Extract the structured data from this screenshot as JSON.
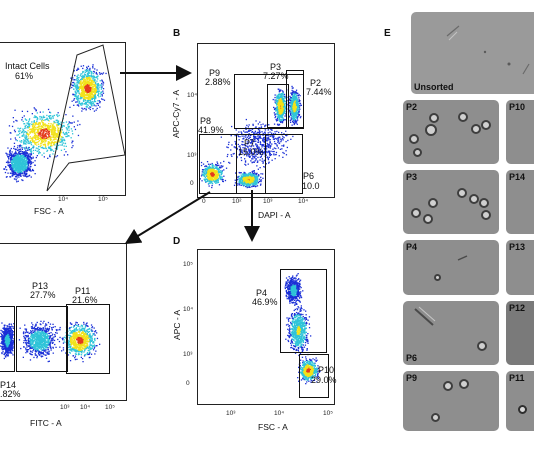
{
  "panels": {
    "a": {
      "xaxis": "FSC - A",
      "ticks_x": [
        "10⁴",
        "10⁵"
      ],
      "gate": {
        "name": "Intact Cells",
        "pct": "61%"
      }
    },
    "b": {
      "letter": "B",
      "xaxis": "DAPI - A",
      "yaxis": "APC-Cy7 - A",
      "ticks_x": [
        "0",
        "10²",
        "10³",
        "10⁴"
      ],
      "ticks_y": [
        "10⁴",
        "10³",
        "0"
      ],
      "gates": [
        {
          "name": "P9",
          "pct": "2.88%"
        },
        {
          "name": "P3",
          "pct": "7.27%"
        },
        {
          "name": "P2",
          "pct": "7.44%"
        },
        {
          "name": "P8",
          "pct": "41.9%"
        },
        {
          "name": "P7",
          "pct": "15.0%"
        },
        {
          "name": "P6",
          "pct": "10.0"
        }
      ]
    },
    "c": {
      "xaxis": "FITC - A",
      "ticks_x": [
        "10³",
        "10⁴",
        "10⁵"
      ],
      "gates": [
        {
          "name": "P13",
          "pct": "27.7%"
        },
        {
          "name": "P11",
          "pct": "21.6%"
        },
        {
          "name": "P14",
          "pct": ".82%"
        }
      ]
    },
    "d": {
      "letter": "D",
      "xaxis": "FSC - A",
      "yaxis": "APC - A",
      "ticks_x": [
        "10³",
        "10⁴",
        "10⁵"
      ],
      "ticks_y": [
        "10⁵",
        "10⁴",
        "10³",
        "0"
      ],
      "gates": [
        {
          "name": "P4",
          "pct": "46.9%"
        },
        {
          "name": "P10",
          "pct": "29.0%"
        }
      ]
    },
    "e": {
      "letter": "E",
      "tiles": {
        "unsorted": "Unsorted",
        "p2": "P2",
        "p10": "P10",
        "p3": "P3",
        "p14": "P14",
        "p4": "P4",
        "p13": "P13",
        "p6": "P6",
        "p12": "P12",
        "p9": "P9",
        "p11": "P11"
      }
    }
  },
  "colors": {
    "density_low": "#1a2fd6",
    "density_mid": "#2fc4d8",
    "density_high": "#f2e21a",
    "density_peak": "#e43a1d",
    "micrograph": "#8e8e8e"
  }
}
